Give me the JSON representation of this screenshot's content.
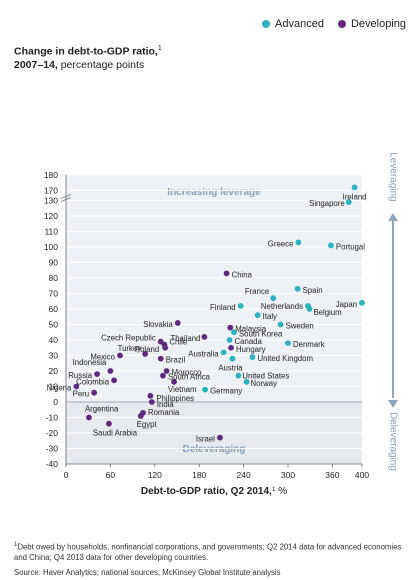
{
  "legend": {
    "advanced": "Advanced",
    "developing": "Developing"
  },
  "y_title": {
    "bold": "Change in debt-to-GDP ratio,",
    "sup": "1",
    "line2_bold": "2007–14,",
    "line2_rest": " percentage points"
  },
  "colors": {
    "advanced": "#2ab2bd",
    "developing": "#5e2a7e",
    "leverage_band": "#eef1f5",
    "delever_band": "#e6e9ee",
    "arrow": "#8ea5bb",
    "band_text": "#8aa0b8"
  },
  "chart_data": {
    "type": "scatter",
    "xlabel": "Debt-to-GDP ratio, Q2 2014,",
    "xlabel_sup": "1",
    "xlabel_unit": " %",
    "xlim": [
      0,
      400
    ],
    "xticks": [
      0,
      60,
      120,
      180,
      240,
      300,
      360,
      400
    ],
    "ylim": [
      -40,
      180
    ],
    "yticks": [
      -40,
      -30,
      -20,
      -10,
      0,
      10,
      20,
      30,
      40,
      50,
      60,
      70,
      80,
      90,
      100,
      110,
      120,
      130,
      170,
      180
    ],
    "axis_break_note": "y axis broken between 130 and 170",
    "top_band_label": "Increasing leverage",
    "bottom_band_label": "Deleveraging",
    "right_top_label": "Leveraging",
    "right_bottom_label": "Deleveraging",
    "series": [
      {
        "name": "Advanced",
        "points": [
          {
            "label": "Ireland",
            "x": 390,
            "y": 172
          },
          {
            "label": "Singapore",
            "x": 382,
            "y": 129
          },
          {
            "label": "Greece",
            "x": 314,
            "y": 103
          },
          {
            "label": "Portugal",
            "x": 358,
            "y": 101
          },
          {
            "label": "Spain",
            "x": 313,
            "y": 73
          },
          {
            "label": "France",
            "x": 280,
            "y": 67
          },
          {
            "label": "Japan",
            "x": 400,
            "y": 64
          },
          {
            "label": "Finland",
            "x": 236,
            "y": 62
          },
          {
            "label": "Netherlands",
            "x": 327,
            "y": 62
          },
          {
            "label": "Belgium",
            "x": 329,
            "y": 60
          },
          {
            "label": "Italy",
            "x": 259,
            "y": 56
          },
          {
            "label": "Sweden",
            "x": 290,
            "y": 50
          },
          {
            "label": "South Korea",
            "x": 227,
            "y": 45
          },
          {
            "label": "Canada",
            "x": 221,
            "y": 40
          },
          {
            "label": "Denmark",
            "x": 300,
            "y": 38
          },
          {
            "label": "Australia",
            "x": 213,
            "y": 32
          },
          {
            "label": "United Kingdom",
            "x": 252,
            "y": 29
          },
          {
            "label": "Austria",
            "x": 225,
            "y": 28
          },
          {
            "label": "United States",
            "x": 233,
            "y": 17
          },
          {
            "label": "Norway",
            "x": 244,
            "y": 13
          },
          {
            "label": "Germany",
            "x": 188,
            "y": 8
          }
        ]
      },
      {
        "name": "Developing",
        "points": [
          {
            "label": "China",
            "x": 217,
            "y": 83
          },
          {
            "label": "Slovakia",
            "x": 151,
            "y": 51
          },
          {
            "label": "Malaysia",
            "x": 222,
            "y": 48
          },
          {
            "label": "Thailand",
            "x": 187,
            "y": 42
          },
          {
            "label": "Czech Republic",
            "x": 128,
            "y": 39
          },
          {
            "label": "Chile",
            "x": 133,
            "y": 37
          },
          {
            "label": "Poland",
            "x": 134,
            "y": 35
          },
          {
            "label": "Hungary",
            "x": 223,
            "y": 35
          },
          {
            "label": "Turkey",
            "x": 107,
            "y": 31
          },
          {
            "label": "Mexico",
            "x": 73,
            "y": 30
          },
          {
            "label": "Brazil",
            "x": 128,
            "y": 28
          },
          {
            "label": "Indonesia",
            "x": 60,
            "y": 20
          },
          {
            "label": "Morocco",
            "x": 136,
            "y": 20
          },
          {
            "label": "Russia",
            "x": 42,
            "y": 18
          },
          {
            "label": "South Africa",
            "x": 131,
            "y": 17
          },
          {
            "label": "Colombia",
            "x": 65,
            "y": 14
          },
          {
            "label": "Vietnam",
            "x": 146,
            "y": 13
          },
          {
            "label": "Nigeria",
            "x": 14,
            "y": 10
          },
          {
            "label": "Peru",
            "x": 38,
            "y": 6
          },
          {
            "label": "Philippines",
            "x": 114,
            "y": 4
          },
          {
            "label": "India",
            "x": 116,
            "y": 0
          },
          {
            "label": "Romania",
            "x": 104,
            "y": -7
          },
          {
            "label": "Argentina",
            "x": 31,
            "y": -10
          },
          {
            "label": "Egypt",
            "x": 101,
            "y": -9
          },
          {
            "label": "Saudi Arabia",
            "x": 58,
            "y": -14
          },
          {
            "label": "Israel",
            "x": 208,
            "y": -23
          }
        ]
      }
    ]
  },
  "footnote": {
    "sup": "1",
    "text": "Debt owed by households, nonfinancial corporations, and governments; Q2 2014 data for advanced economies and China; Q4 2013 data for other developing countries."
  },
  "source": "Source: Haver Analytics; national sources; McKinsey Global Institute analysis"
}
